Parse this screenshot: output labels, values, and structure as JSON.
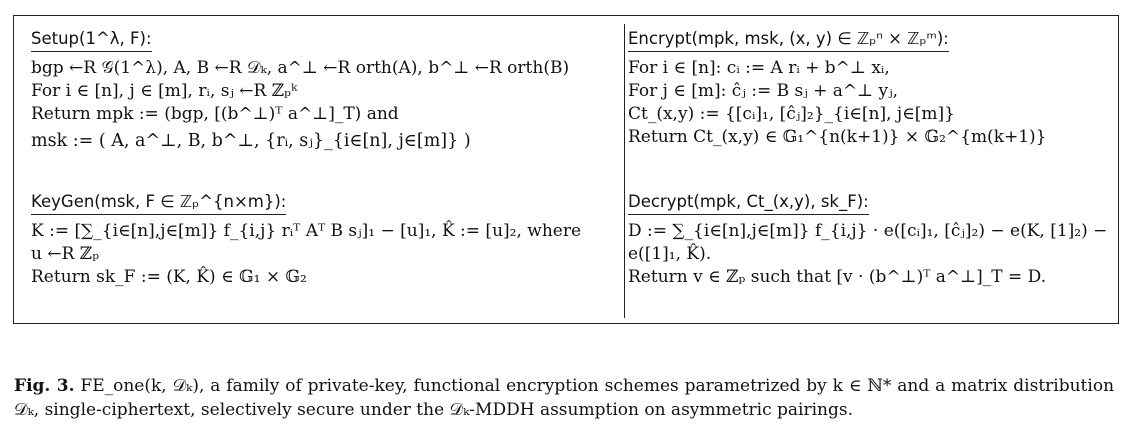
{
  "setup": {
    "title": "Setup(1^λ, F):",
    "lines": [
      "bgp ←R 𝒢(1^λ), A, B ←R 𝒟ₖ, a^⊥ ←R orth(A), b^⊥ ←R orth(B)",
      "For i ∈ [n], j ∈ [m], rᵢ, sⱼ ←R ℤₚᵏ",
      "Return mpk := (bgp, [(b^⊥)ᵀ a^⊥]_T) and",
      "msk := ( A, a^⊥, B, b^⊥, {rᵢ, sⱼ}_{i∈[n], j∈[m]} )"
    ]
  },
  "keygen": {
    "title": "KeyGen(msk, F ∈ ℤₚ^{n×m}):",
    "lines": [
      "K := [∑_{i∈[n],j∈[m]} f_{i,j} rᵢᵀ Aᵀ B sⱼ]₁ − [u]₁,  K̂ := [u]₂,  where",
      "u ←R ℤₚ",
      "Return sk_F := (K, K̂) ∈ 𝔾₁ × 𝔾₂"
    ]
  },
  "encrypt": {
    "title": "Encrypt(mpk, msk, (x, y) ∈ ℤₚⁿ × ℤₚᵐ):",
    "lines": [
      "For i ∈ [n]: cᵢ := A rᵢ + b^⊥ xᵢ,",
      "For j ∈ [m]: ĉⱼ := B sⱼ + a^⊥ yⱼ,",
      "Ct_(x,y) := {[cᵢ]₁, [ĉⱼ]₂}_{i∈[n], j∈[m]}",
      "Return Ct_(x,y) ∈ 𝔾₁^{n(k+1)} × 𝔾₂^{m(k+1)}"
    ]
  },
  "decrypt": {
    "title": "Decrypt(mpk, Ct_(x,y), sk_F):",
    "lines": [
      "D := ∑_{i∈[n],j∈[m]} f_{i,j} · e([cᵢ]₁, [ĉⱼ]₂) − e(K, [1]₂) −",
      "e([1]₁, K̂).",
      "Return v ∈ ℤₚ such that [v · (b^⊥)ᵀ a^⊥]_T = D."
    ]
  },
  "caption": {
    "label": "Fig. 3.",
    "text": "FE_one(k, 𝒟ₖ), a family of private-key, functional encryption schemes parametrized by k ∈ ℕ* and a matrix distribution 𝒟ₖ, single-ciphertext, selectively secure under the 𝒟ₖ-MDDH assumption on asymmetric pairings."
  }
}
